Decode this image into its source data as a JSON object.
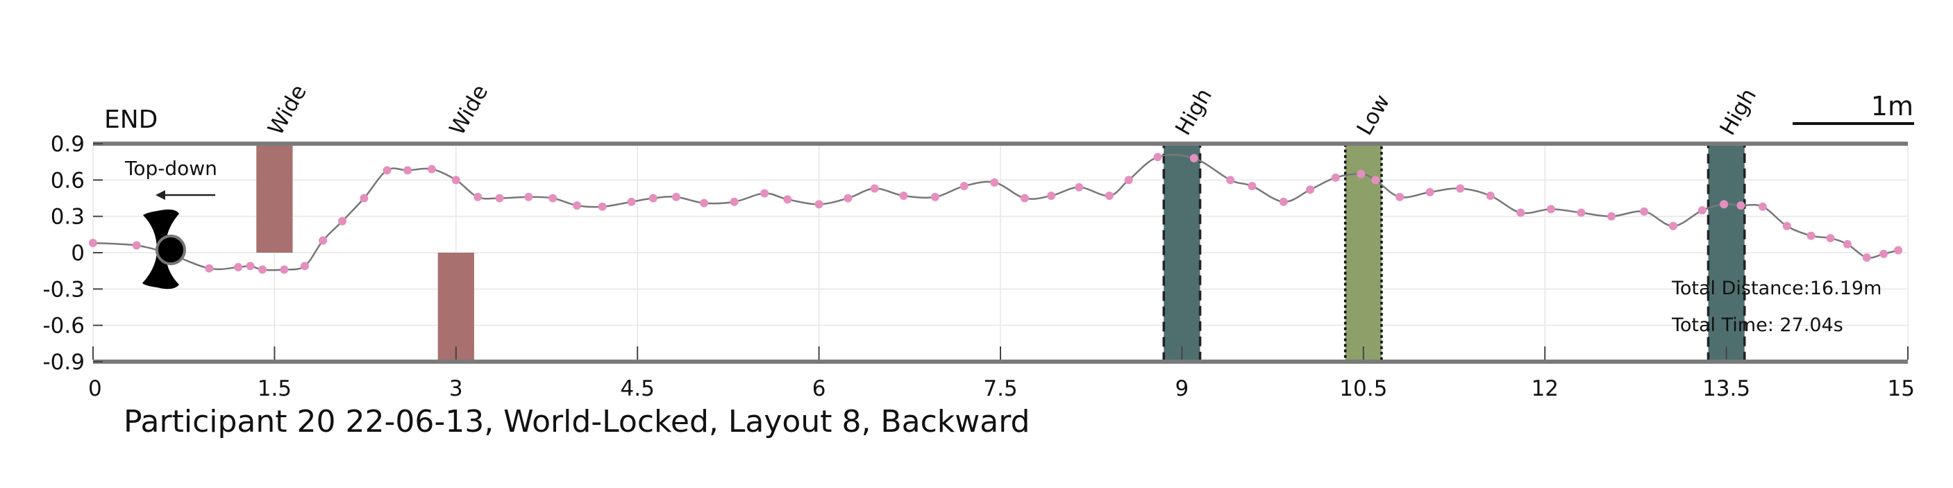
{
  "chart_data": {
    "type": "line",
    "title": "Participant 20 22-06-13, World-Locked, Layout 8, Backward",
    "xlabel": "",
    "ylabel": "",
    "xlim": [
      0,
      15
    ],
    "ylim": [
      -0.9,
      0.9
    ],
    "xticks": [
      "0",
      "1.5",
      "3",
      "4.5",
      "6",
      "7.5",
      "9",
      "10.5",
      "12",
      "13.5",
      "15"
    ],
    "yticks": [
      "0.9",
      "0.6",
      "0.3",
      "0",
      "-0.3",
      "-0.6",
      "-0.9"
    ],
    "grid": true,
    "end_label": "END",
    "orientation_label": "Top-down",
    "scale_bar_label": "1m",
    "total_distance": "Total Distance:16.19m",
    "total_time": "Total Time: 27.04s",
    "path": {
      "color": "#777777",
      "marker_color": "#e58fbf",
      "x": [
        0.0,
        0.36,
        0.63,
        0.96,
        1.2,
        1.3,
        1.4,
        1.58,
        1.75,
        1.9,
        2.06,
        2.24,
        2.43,
        2.6,
        2.8,
        3.0,
        3.18,
        3.36,
        3.6,
        3.8,
        4.0,
        4.21,
        4.45,
        4.63,
        4.82,
        5.05,
        5.3,
        5.55,
        5.74,
        6.0,
        6.24,
        6.46,
        6.7,
        6.96,
        7.2,
        7.45,
        7.7,
        7.92,
        8.15,
        8.4,
        8.56,
        8.8,
        9.1,
        9.4,
        9.58,
        9.84,
        10.06,
        10.27,
        10.48,
        10.6,
        10.8,
        11.05,
        11.3,
        11.55,
        11.8,
        12.05,
        12.3,
        12.55,
        12.82,
        13.06,
        13.3,
        13.48,
        13.62,
        13.8,
        14.0,
        14.2,
        14.36,
        14.5,
        14.66,
        14.8,
        14.92
      ],
      "y": [
        0.08,
        0.06,
        -0.01,
        -0.13,
        -0.12,
        -0.11,
        -0.14,
        -0.14,
        -0.11,
        0.1,
        0.26,
        0.45,
        0.68,
        0.68,
        0.69,
        0.6,
        0.46,
        0.45,
        0.46,
        0.45,
        0.39,
        0.38,
        0.42,
        0.45,
        0.46,
        0.41,
        0.42,
        0.49,
        0.44,
        0.4,
        0.45,
        0.53,
        0.47,
        0.46,
        0.55,
        0.58,
        0.45,
        0.47,
        0.54,
        0.47,
        0.6,
        0.79,
        0.78,
        0.6,
        0.55,
        0.42,
        0.52,
        0.62,
        0.65,
        0.6,
        0.46,
        0.5,
        0.53,
        0.47,
        0.33,
        0.36,
        0.33,
        0.3,
        0.34,
        0.22,
        0.35,
        0.4,
        0.39,
        0.38,
        0.22,
        0.14,
        0.12,
        0.07,
        -0.04,
        -0.01,
        0.02
      ]
    },
    "obstacles": [
      {
        "label": "Wide",
        "x0": 1.35,
        "x1": 1.65,
        "y0": 0.0,
        "y1": 0.9,
        "fill": "#a8706f",
        "stroke": "none",
        "dash": ""
      },
      {
        "label": "Wide",
        "x0": 2.85,
        "x1": 3.15,
        "y0": -0.9,
        "y1": 0.0,
        "fill": "#a8706f",
        "stroke": "none",
        "dash": ""
      },
      {
        "label": "High",
        "x0": 8.85,
        "x1": 9.15,
        "y0": -0.9,
        "y1": 0.9,
        "fill": "#4f6f6f",
        "stroke": "#222222",
        "dash": "14,8"
      },
      {
        "label": "Low",
        "x0": 10.35,
        "x1": 10.65,
        "y0": -0.9,
        "y1": 0.9,
        "fill": "#8ea069",
        "stroke": "#111111",
        "dash": "4,4"
      },
      {
        "label": "High",
        "x0": 13.35,
        "x1": 13.65,
        "y0": -0.9,
        "y1": 0.9,
        "fill": "#4f6f6f",
        "stroke": "#222222",
        "dash": "14,8"
      }
    ]
  }
}
